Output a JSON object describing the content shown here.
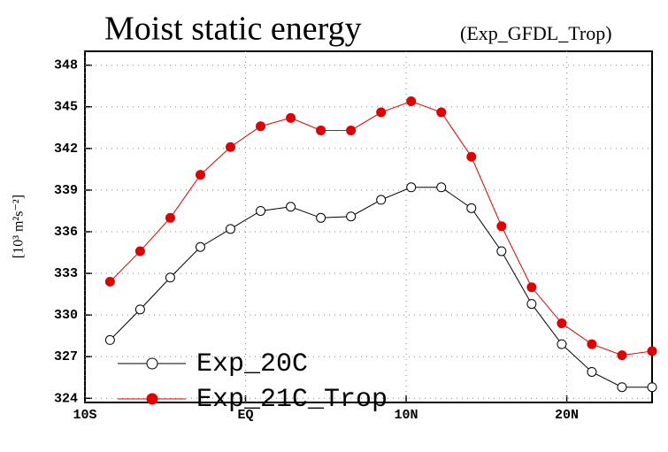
{
  "chart_data": {
    "type": "line",
    "title": "Moist static energy",
    "subtitle": "(Exp_GFDL_Trop)",
    "y_label": "[10³ m²s⁻²]",
    "x": [
      -8.4375,
      -6.5625,
      -4.6875,
      -2.8125,
      -0.9375,
      0.9375,
      2.8125,
      4.6875,
      6.5625,
      8.4375,
      10.3125,
      12.1875,
      14.0625,
      15.9375,
      17.8125,
      19.6875,
      21.5625,
      23.4375,
      25.3125
    ],
    "xlim": [
      -10,
      25.3125
    ],
    "xticks": [
      {
        "value": -10,
        "label": "10S"
      },
      {
        "value": 0,
        "label": "EQ"
      },
      {
        "value": 10,
        "label": "10N"
      },
      {
        "value": 20,
        "label": "20N"
      }
    ],
    "ylim": [
      323.7,
      349
    ],
    "yticks": [
      324,
      327,
      330,
      333,
      336,
      339,
      342,
      345,
      348
    ],
    "grid": true,
    "legend": "lower left",
    "series": [
      {
        "name": "Exp_20C",
        "color": "#000000",
        "marker_fill": "#ffffff",
        "values": [
          328.2,
          330.4,
          332.7,
          334.9,
          336.2,
          337.5,
          337.8,
          337.0,
          337.1,
          338.3,
          339.2,
          339.2,
          337.7,
          334.6,
          330.8,
          327.9,
          325.9,
          324.8,
          324.8
        ]
      },
      {
        "name": "Exp_21C_Trop",
        "color": "#e00000",
        "marker_fill": "#e00000",
        "values": [
          332.4,
          334.6,
          337.0,
          340.1,
          342.1,
          343.6,
          344.2,
          343.3,
          343.3,
          344.6,
          345.4,
          344.6,
          341.4,
          336.4,
          332.0,
          329.4,
          327.9,
          327.1,
          327.4
        ]
      }
    ]
  }
}
